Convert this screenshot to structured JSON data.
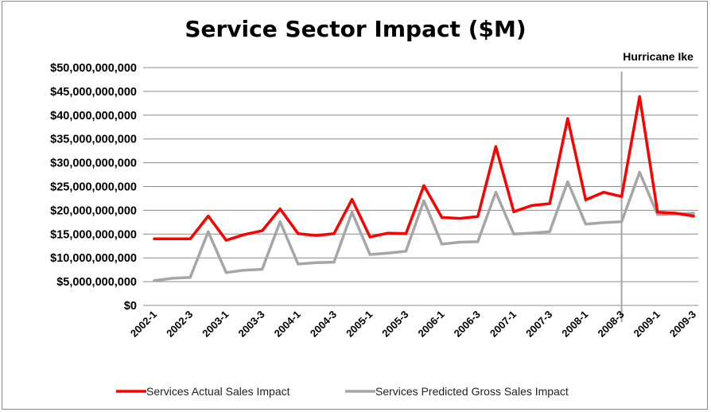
{
  "chart_data": {
    "type": "line",
    "title": "Service Sector Impact ($M)",
    "xlabel": "",
    "ylabel": "",
    "ylim": [
      0,
      50000000000
    ],
    "y_ticks": [
      0,
      5000000000,
      10000000000,
      15000000000,
      20000000000,
      25000000000,
      30000000000,
      35000000000,
      40000000000,
      45000000000,
      50000000000
    ],
    "y_tick_labels": [
      "$0",
      "$5,000,000,000",
      "$10,000,000,000",
      "$15,000,000,000",
      "$20,000,000,000",
      "$25,000,000,000",
      "$30,000,000,000",
      "$35,000,000,000",
      "$40,000,000,000",
      "$45,000,000,000",
      "$50,000,000,000"
    ],
    "grid": "horizontal",
    "legend": "bottom",
    "categories": [
      "2002-1",
      "2002-2",
      "2002-3",
      "2002-4",
      "2003-1",
      "2003-2",
      "2003-3",
      "2003-4",
      "2004-1",
      "2004-2",
      "2004-3",
      "2004-4",
      "2005-1",
      "2005-2",
      "2005-3",
      "2005-4",
      "2006-1",
      "2006-2",
      "2006-3",
      "2006-4",
      "2007-1",
      "2007-2",
      "2007-3",
      "2007-4",
      "2008-1",
      "2008-2",
      "2008-3",
      "2008-4",
      "2009-1",
      "2009-2",
      "2009-3"
    ],
    "x_tick_labels": [
      "2002-1",
      "2002-3",
      "2003-1",
      "2003-3",
      "2004-1",
      "2004-3",
      "2005-1",
      "2005-3",
      "2006-1",
      "2006-3",
      "2007-1",
      "2007-3",
      "2008-1",
      "2008-3",
      "2009-1",
      "2009-3"
    ],
    "series": [
      {
        "name": "Services Actual Sales Impact",
        "color": "#ff0000",
        "values": [
          14000000000,
          14000000000,
          14000000000,
          18800000000,
          13700000000,
          14900000000,
          15700000000,
          20300000000,
          15100000000,
          14700000000,
          15100000000,
          22300000000,
          14400000000,
          15200000000,
          15100000000,
          25200000000,
          18500000000,
          18300000000,
          18700000000,
          33400000000,
          19700000000,
          21000000000,
          21400000000,
          39300000000,
          22200000000,
          23800000000,
          22900000000,
          43900000000,
          19600000000,
          19400000000,
          18800000000
        ]
      },
      {
        "name": "Services Predicted Gross Sales Impact",
        "color": "#a6a6a6",
        "values": [
          5200000000,
          5700000000,
          5900000000,
          15500000000,
          6900000000,
          7400000000,
          7600000000,
          17600000000,
          8700000000,
          9000000000,
          9100000000,
          19600000000,
          10700000000,
          11000000000,
          11400000000,
          22000000000,
          12900000000,
          13300000000,
          13400000000,
          23800000000,
          15000000000,
          15200000000,
          15500000000,
          26000000000,
          17100000000,
          17400000000,
          17600000000,
          28000000000,
          19100000000,
          19200000000,
          19400000000
        ]
      }
    ],
    "annotations": [
      {
        "label": "Hurricane Ike",
        "category": "2008-3",
        "color": "#a6a6a6"
      }
    ]
  }
}
